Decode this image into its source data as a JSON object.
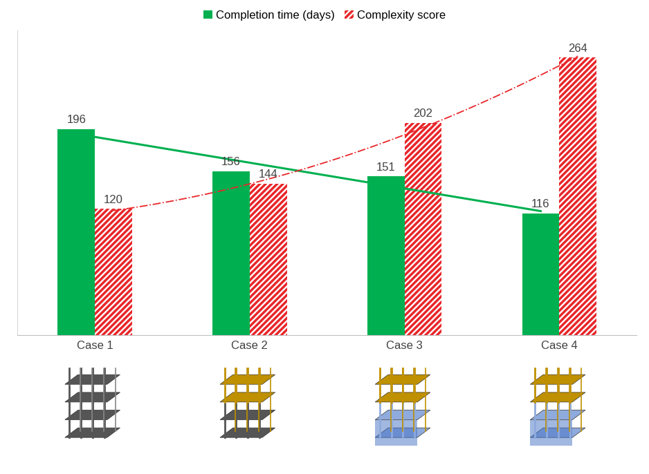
{
  "chart_data": {
    "type": "bar",
    "categories": [
      "Case 1",
      "Case 2",
      "Case 3",
      "Case 4"
    ],
    "series": [
      {
        "name": "Completion time (days)",
        "color": "#00b050",
        "values": [
          196,
          156,
          151,
          116
        ]
      },
      {
        "name": "Complexity score",
        "color": "#e8262a",
        "values": [
          120,
          144,
          202,
          264
        ]
      }
    ],
    "ylim": [
      0,
      290
    ],
    "yticks": [],
    "tick_labels": "x",
    "data_labels": true,
    "legend": "upper center",
    "grid": false
  }
}
